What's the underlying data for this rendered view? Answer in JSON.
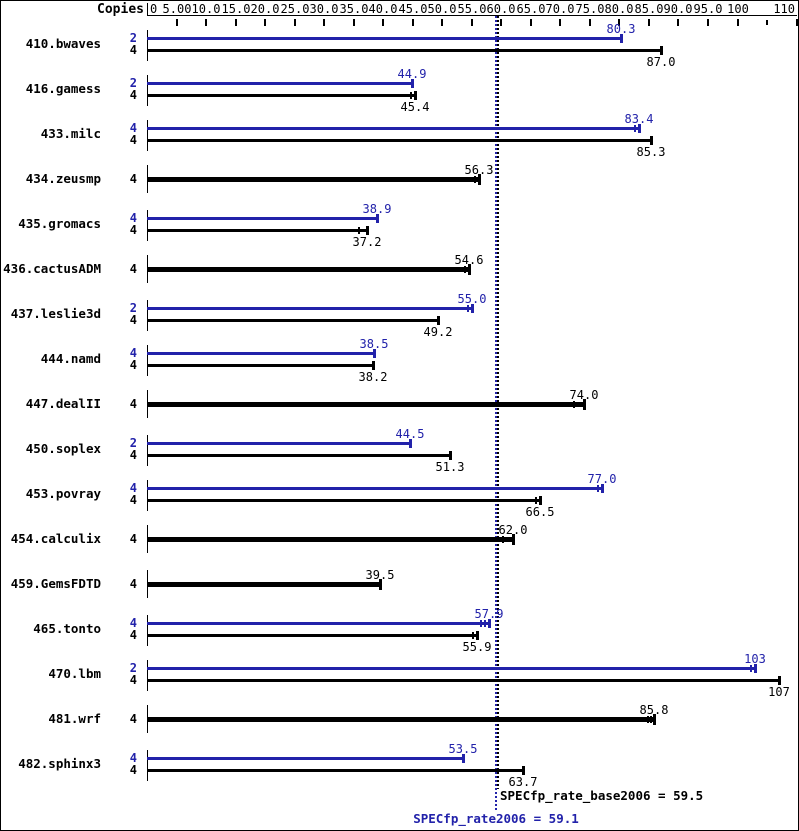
{
  "header": {
    "copies_label": "Copies"
  },
  "summary": {
    "base_label": "SPECfp_rate_base2006 = 59.5",
    "peak_label": "SPECfp_rate2006 = 59.1",
    "base_value": 59.5,
    "peak_value": 59.1
  },
  "colors": {
    "peak": "#2222aa",
    "base": "#000000",
    "background": "#ffffff"
  },
  "chart_data": {
    "type": "bar",
    "orientation": "horizontal",
    "title": "",
    "xlabel": "",
    "ylabel": "Copies",
    "xlim": [
      0,
      110
    ],
    "grid": false,
    "legend_position": "none",
    "x_axis": {
      "zero_label": "0",
      "ticks": [
        5,
        10,
        15,
        20,
        25,
        30,
        35,
        40,
        45,
        50,
        55,
        60,
        65,
        70,
        75,
        80,
        85,
        90,
        95,
        100,
        110
      ],
      "tick_labels": [
        "5.00",
        "10.0",
        "15.0",
        "20.0",
        "25.0",
        "30.0",
        "35.0",
        "40.0",
        "45.0",
        "50.0",
        "55.0",
        "60.0",
        "65.0",
        "70.0",
        "75.0",
        "80.0",
        "85.0",
        "90.0",
        "95.0",
        "100",
        "110"
      ],
      "minor_ticks": [
        105
      ]
    },
    "series_meta": [
      {
        "name": "peak",
        "color_key": "peak"
      },
      {
        "name": "base",
        "color_key": "base"
      }
    ],
    "reference_lines": [
      {
        "series": "base",
        "value": 59.5,
        "style": "dotted"
      },
      {
        "series": "peak",
        "value": 59.1,
        "style": "dotted"
      }
    ],
    "benchmarks": [
      {
        "name": "410.bwaves",
        "bars": [
          {
            "copies": 2,
            "series": "peak",
            "value": 80.3,
            "label": "80.3",
            "run_marks": []
          },
          {
            "copies": 4,
            "series": "base",
            "value": 87.0,
            "label": "87.0",
            "run_marks": []
          }
        ]
      },
      {
        "name": "416.gamess",
        "bars": [
          {
            "copies": 2,
            "series": "peak",
            "value": 44.9,
            "label": "44.9",
            "run_marks": []
          },
          {
            "copies": 4,
            "series": "base",
            "value": 45.4,
            "label": "45.4",
            "run_marks": [
              -4
            ]
          }
        ]
      },
      {
        "name": "433.milc",
        "bars": [
          {
            "copies": 4,
            "series": "peak",
            "value": 83.4,
            "label": "83.4",
            "run_marks": [
              -4
            ]
          },
          {
            "copies": 4,
            "series": "base",
            "value": 85.3,
            "label": "85.3",
            "run_marks": []
          }
        ]
      },
      {
        "name": "434.zeusmp",
        "bars": [
          {
            "copies": 4,
            "series": "base",
            "value": 56.3,
            "label": "56.3",
            "run_marks": [
              -4
            ]
          }
        ]
      },
      {
        "name": "435.gromacs",
        "bars": [
          {
            "copies": 4,
            "series": "peak",
            "value": 38.9,
            "label": "38.9",
            "run_marks": []
          },
          {
            "copies": 4,
            "series": "base",
            "value": 37.2,
            "label": "37.2",
            "run_marks": [
              -8
            ]
          }
        ]
      },
      {
        "name": "436.cactusADM",
        "bars": [
          {
            "copies": 4,
            "series": "base",
            "value": 54.6,
            "label": "54.6",
            "run_marks": [
              -4
            ]
          }
        ]
      },
      {
        "name": "437.leslie3d",
        "bars": [
          {
            "copies": 2,
            "series": "peak",
            "value": 55.0,
            "label": "55.0",
            "run_marks": [
              -4
            ]
          },
          {
            "copies": 4,
            "series": "base",
            "value": 49.2,
            "label": "49.2",
            "run_marks": []
          }
        ]
      },
      {
        "name": "444.namd",
        "bars": [
          {
            "copies": 4,
            "series": "peak",
            "value": 38.5,
            "label": "38.5",
            "run_marks": []
          },
          {
            "copies": 4,
            "series": "base",
            "value": 38.2,
            "label": "38.2",
            "run_marks": []
          }
        ]
      },
      {
        "name": "447.dealII",
        "bars": [
          {
            "copies": 4,
            "series": "base",
            "value": 74.0,
            "label": "74.0",
            "run_marks": [
              -10
            ]
          }
        ]
      },
      {
        "name": "450.soplex",
        "bars": [
          {
            "copies": 2,
            "series": "peak",
            "value": 44.5,
            "label": "44.5",
            "run_marks": []
          },
          {
            "copies": 4,
            "series": "base",
            "value": 51.3,
            "label": "51.3",
            "run_marks": []
          }
        ]
      },
      {
        "name": "453.povray",
        "bars": [
          {
            "copies": 4,
            "series": "peak",
            "value": 77.0,
            "label": "77.0",
            "run_marks": [
              -4
            ]
          },
          {
            "copies": 4,
            "series": "base",
            "value": 66.5,
            "label": "66.5",
            "run_marks": [
              -4
            ]
          }
        ]
      },
      {
        "name": "454.calculix",
        "bars": [
          {
            "copies": 4,
            "series": "base",
            "value": 62.0,
            "label": "62.0",
            "run_marks": [
              -10
            ]
          }
        ]
      },
      {
        "name": "459.GemsFDTD",
        "bars": [
          {
            "copies": 4,
            "series": "base",
            "value": 39.5,
            "label": "39.5",
            "run_marks": []
          }
        ]
      },
      {
        "name": "465.tonto",
        "bars": [
          {
            "copies": 4,
            "series": "peak",
            "value": 57.9,
            "label": "57.9",
            "run_marks": [
              -4,
              -8
            ]
          },
          {
            "copies": 4,
            "series": "base",
            "value": 55.9,
            "label": "55.9",
            "run_marks": [
              -4
            ]
          }
        ]
      },
      {
        "name": "470.lbm",
        "bars": [
          {
            "copies": 2,
            "series": "peak",
            "value": 103,
            "label": "103",
            "run_marks": [
              -4
            ]
          },
          {
            "copies": 4,
            "series": "base",
            "value": 107,
            "label": "107",
            "run_marks": []
          }
        ]
      },
      {
        "name": "481.wrf",
        "bars": [
          {
            "copies": 4,
            "series": "base",
            "value": 85.8,
            "label": "85.8",
            "run_marks": [
              -3,
              -6
            ]
          }
        ]
      },
      {
        "name": "482.sphinx3",
        "bars": [
          {
            "copies": 4,
            "series": "peak",
            "value": 53.5,
            "label": "53.5",
            "run_marks": []
          },
          {
            "copies": 4,
            "series": "base",
            "value": 63.7,
            "label": "63.7",
            "run_marks": []
          }
        ]
      }
    ]
  }
}
